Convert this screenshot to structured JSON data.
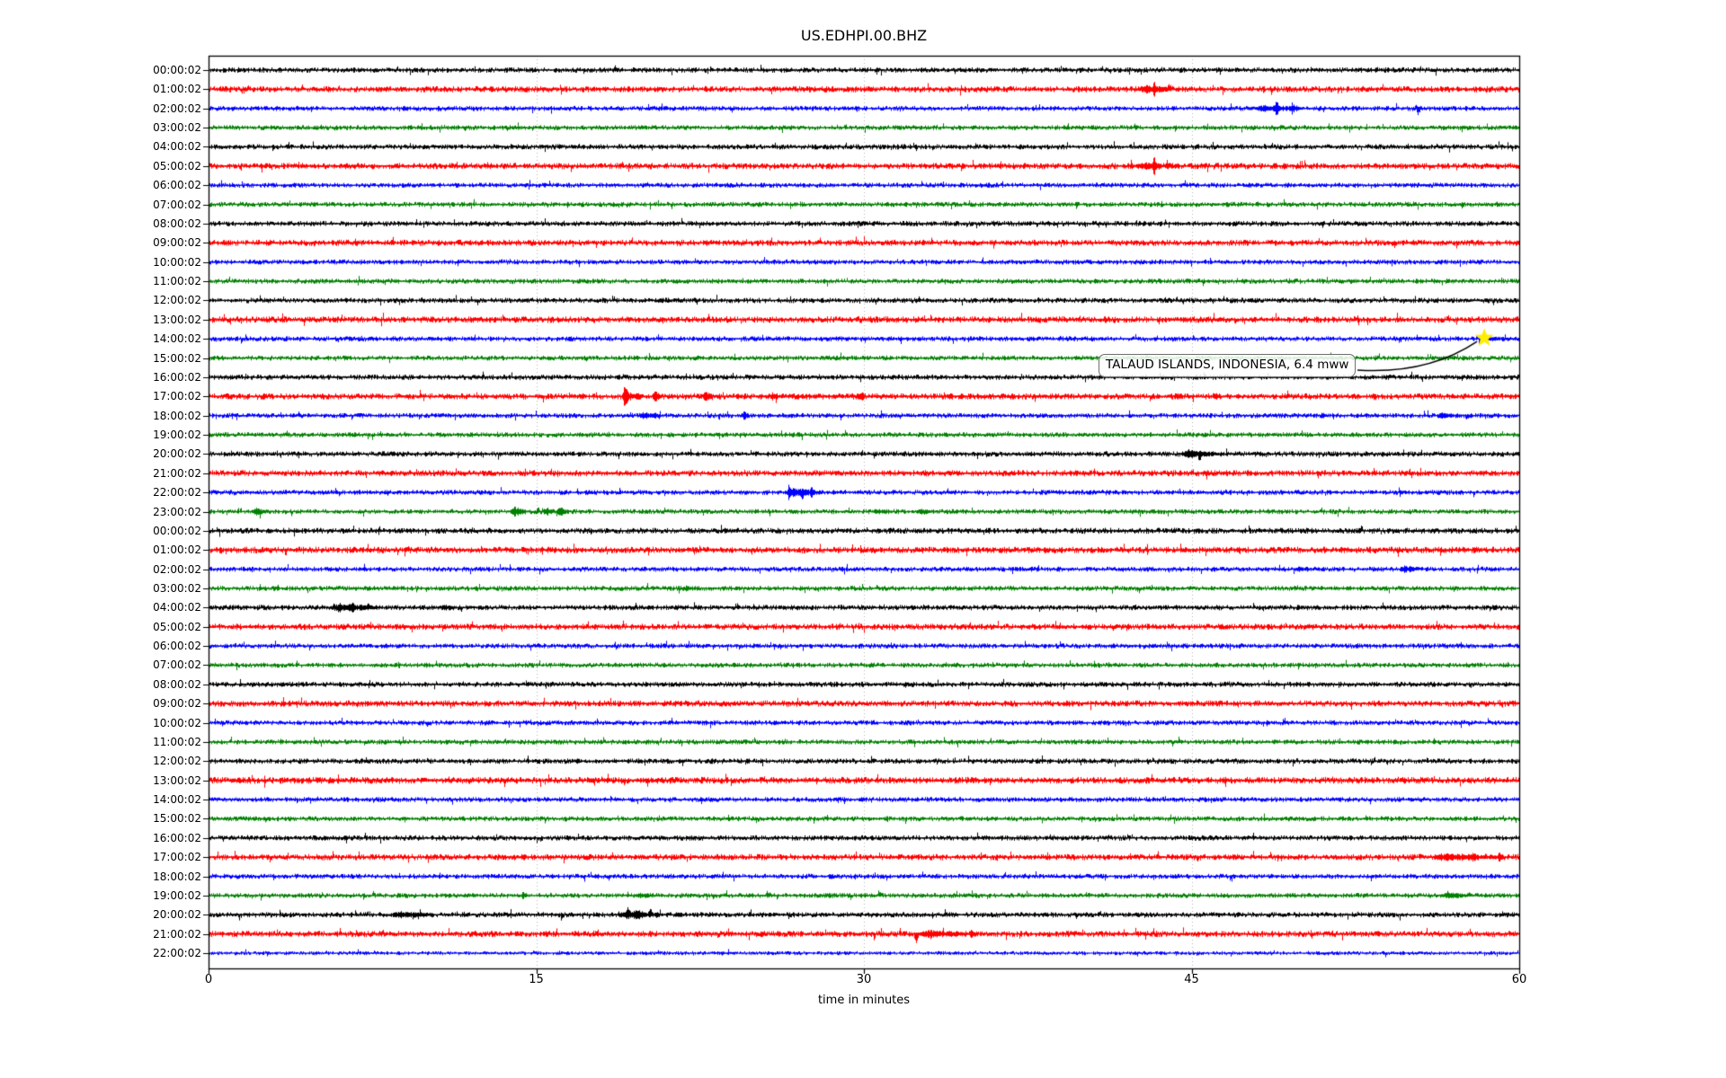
{
  "chart_data": {
    "type": "line",
    "subtype": "helicorder-seismogram",
    "title": "US.EDHPI.00.BHZ",
    "xlabel": "time in minutes",
    "xlim": [
      0,
      60
    ],
    "x_ticks": [
      0,
      15,
      30,
      45,
      60
    ],
    "grid": {
      "vertical_at_minutes": [
        15,
        30,
        45
      ],
      "style": "dotted",
      "color": "#b5b5b5"
    },
    "trace_colors_cycle": [
      "#000000",
      "#ff0000",
      "#0000ff",
      "#008000"
    ],
    "events_format": [
      "start_minute",
      "duration_minutes",
      "amplitude_px",
      "direction(-1 down,0 both,1 up)"
    ],
    "rows": [
      {
        "label": "00:00:02",
        "color": "#000000",
        "noise": 1.9,
        "events": [
          [
            18.55,
            0.15,
            6,
            1
          ]
        ]
      },
      {
        "label": "01:00:02",
        "color": "#ff0000",
        "noise": 2.2,
        "events": [
          [
            42.5,
            2.2,
            4,
            0
          ],
          [
            43.2,
            0.25,
            9,
            0
          ],
          [
            43.9,
            0.3,
            6,
            1
          ]
        ]
      },
      {
        "label": "02:00:02",
        "color": "#0000ff",
        "noise": 1.8,
        "events": [
          [
            47.9,
            2.2,
            4,
            0
          ],
          [
            48.8,
            0.2,
            11,
            0
          ],
          [
            49.5,
            0.4,
            6,
            0
          ],
          [
            55.2,
            0.2,
            5,
            1
          ],
          [
            55.3,
            0.15,
            12,
            -1
          ]
        ]
      },
      {
        "label": "03:00:02",
        "color": "#008000",
        "noise": 1.8,
        "events": []
      },
      {
        "label": "04:00:02",
        "color": "#000000",
        "noise": 1.9,
        "events": []
      },
      {
        "label": "05:00:02",
        "color": "#ff0000",
        "noise": 2.2,
        "events": [
          [
            42.4,
            2.0,
            4,
            0
          ],
          [
            43.2,
            0.2,
            13,
            0
          ],
          [
            43.8,
            0.3,
            6,
            1
          ]
        ]
      },
      {
        "label": "06:00:02",
        "color": "#0000ff",
        "noise": 1.8,
        "events": []
      },
      {
        "label": "07:00:02",
        "color": "#008000",
        "noise": 1.8,
        "events": []
      },
      {
        "label": "08:00:02",
        "color": "#000000",
        "noise": 1.9,
        "events": []
      },
      {
        "label": "09:00:02",
        "color": "#ff0000",
        "noise": 2.2,
        "events": [
          [
            9.2,
            0.6,
            2.5,
            0
          ]
        ]
      },
      {
        "label": "10:00:02",
        "color": "#0000ff",
        "noise": 1.8,
        "events": []
      },
      {
        "label": "11:00:02",
        "color": "#008000",
        "noise": 1.8,
        "events": []
      },
      {
        "label": "12:00:02",
        "color": "#000000",
        "noise": 1.9,
        "events": []
      },
      {
        "label": "13:00:02",
        "color": "#ff0000",
        "noise": 2.3,
        "events": []
      },
      {
        "label": "14:00:02",
        "color": "#0000ff",
        "noise": 1.8,
        "events": [
          [
            58.4,
            0.3,
            3.5,
            0
          ],
          [
            58.4,
            1.6,
            2,
            0
          ]
        ]
      },
      {
        "label": "15:00:02",
        "color": "#008000",
        "noise": 1.8,
        "events": []
      },
      {
        "label": "16:00:02",
        "color": "#000000",
        "noise": 1.9,
        "events": []
      },
      {
        "label": "17:00:02",
        "color": "#ff0000",
        "noise": 2.2,
        "events": [
          [
            18.9,
            0.5,
            9,
            0
          ],
          [
            19.5,
            0.3,
            6,
            0
          ],
          [
            20.3,
            0.4,
            6,
            0
          ],
          [
            19.0,
            41.0,
            1.2,
            0
          ],
          [
            22.6,
            0.5,
            5,
            0
          ],
          [
            24.1,
            0.3,
            4,
            0
          ],
          [
            25.7,
            0.5,
            4,
            0
          ],
          [
            28.9,
            0.2,
            3.5,
            0
          ],
          [
            29.8,
            0.25,
            6,
            0
          ],
          [
            34.4,
            0.2,
            3.5,
            0
          ],
          [
            44.3,
            0.3,
            4,
            0
          ],
          [
            46.0,
            0.3,
            4.5,
            0
          ],
          [
            47.0,
            0.25,
            3.5,
            0
          ],
          [
            53.3,
            0.2,
            6,
            -1
          ]
        ]
      },
      {
        "label": "18:00:02",
        "color": "#0000ff",
        "noise": 1.8,
        "events": [
          [
            19.7,
            0.9,
            4,
            0
          ],
          [
            20.3,
            0.3,
            4,
            0
          ],
          [
            24.4,
            0.35,
            5,
            0
          ],
          [
            50.9,
            0.3,
            3.5,
            0
          ],
          [
            56.2,
            1.3,
            3,
            0
          ],
          [
            57.5,
            0.4,
            4.5,
            -1
          ]
        ]
      },
      {
        "label": "19:00:02",
        "color": "#008000",
        "noise": 1.8,
        "events": [
          [
            8.9,
            0.3,
            3,
            1
          ]
        ]
      },
      {
        "label": "20:00:02",
        "color": "#000000",
        "noise": 1.9,
        "events": [
          [
            44.5,
            2.0,
            4,
            0
          ],
          [
            44.8,
            0.2,
            5,
            1
          ],
          [
            45.3,
            0.15,
            13,
            -1
          ]
        ]
      },
      {
        "label": "21:00:02",
        "color": "#ff0000",
        "noise": 2.2,
        "events": []
      },
      {
        "label": "22:00:02",
        "color": "#0000ff",
        "noise": 1.8,
        "events": [
          [
            26.4,
            1.6,
            5,
            0
          ],
          [
            26.5,
            0.2,
            8,
            0
          ],
          [
            27.1,
            0.2,
            8,
            -1
          ],
          [
            27.5,
            0.25,
            7,
            0
          ]
        ]
      },
      {
        "label": "23:00:02",
        "color": "#008000",
        "noise": 1.8,
        "events": [
          [
            2.0,
            0.7,
            4,
            0
          ],
          [
            2.3,
            0.15,
            8,
            -1
          ],
          [
            13.8,
            0.8,
            5,
            0
          ],
          [
            15.0,
            0.15,
            7,
            1
          ],
          [
            15.3,
            0.5,
            5,
            0
          ],
          [
            15.9,
            0.6,
            5,
            0
          ],
          [
            30.4,
            0.9,
            3,
            0
          ],
          [
            32.4,
            0.9,
            3,
            0
          ],
          [
            32.7,
            0.15,
            6,
            -1
          ]
        ]
      },
      {
        "label": "00:00:02",
        "color": "#000000",
        "noise": 2.1,
        "events": []
      },
      {
        "label": "01:00:02",
        "color": "#ff0000",
        "noise": 2.3,
        "events": [
          [
            48.4,
            0.2,
            4,
            -1
          ]
        ]
      },
      {
        "label": "02:00:02",
        "color": "#0000ff",
        "noise": 1.8,
        "events": [
          [
            49.8,
            0.6,
            3,
            0
          ],
          [
            54.5,
            1.0,
            4,
            0
          ]
        ]
      },
      {
        "label": "03:00:02",
        "color": "#008000",
        "noise": 1.8,
        "events": [
          [
            21.8,
            0.25,
            3,
            0
          ],
          [
            54.5,
            0.25,
            3,
            1
          ]
        ]
      },
      {
        "label": "04:00:02",
        "color": "#000000",
        "noise": 1.9,
        "events": [
          [
            5.5,
            2.5,
            4.5,
            0
          ],
          [
            5.9,
            0.2,
            7,
            -1
          ],
          [
            6.5,
            0.25,
            6,
            0
          ],
          [
            7.2,
            0.3,
            6,
            1
          ],
          [
            10.6,
            0.7,
            3.5,
            0
          ],
          [
            12.3,
            0.2,
            2.5,
            0
          ]
        ]
      },
      {
        "label": "05:00:02",
        "color": "#ff0000",
        "noise": 2.2,
        "events": []
      },
      {
        "label": "06:00:02",
        "color": "#0000ff",
        "noise": 1.8,
        "events": []
      },
      {
        "label": "07:00:02",
        "color": "#008000",
        "noise": 1.8,
        "events": []
      },
      {
        "label": "08:00:02",
        "color": "#000000",
        "noise": 1.9,
        "events": []
      },
      {
        "label": "09:00:02",
        "color": "#ff0000",
        "noise": 2.2,
        "events": []
      },
      {
        "label": "10:00:02",
        "color": "#0000ff",
        "noise": 1.8,
        "events": []
      },
      {
        "label": "11:00:02",
        "color": "#008000",
        "noise": 1.8,
        "events": []
      },
      {
        "label": "12:00:02",
        "color": "#000000",
        "noise": 1.9,
        "events": []
      },
      {
        "label": "13:00:02",
        "color": "#ff0000",
        "noise": 2.4,
        "events": []
      },
      {
        "label": "14:00:02",
        "color": "#0000ff",
        "noise": 1.8,
        "events": []
      },
      {
        "label": "15:00:02",
        "color": "#008000",
        "noise": 1.8,
        "events": []
      },
      {
        "label": "16:00:02",
        "color": "#000000",
        "noise": 1.9,
        "events": []
      },
      {
        "label": "17:00:02",
        "color": "#ff0000",
        "noise": 2.2,
        "events": [
          [
            56.0,
            3.4,
            4,
            0
          ],
          [
            56.3,
            0.2,
            6,
            0
          ],
          [
            57.8,
            0.25,
            6,
            0
          ],
          [
            59.0,
            0.3,
            5,
            0
          ]
        ]
      },
      {
        "label": "18:00:02",
        "color": "#0000ff",
        "noise": 1.8,
        "events": []
      },
      {
        "label": "19:00:02",
        "color": "#008000",
        "noise": 1.8,
        "events": [
          [
            14.3,
            0.3,
            4.5,
            0
          ],
          [
            19.5,
            1.1,
            3,
            0
          ],
          [
            25.5,
            0.3,
            5,
            1
          ],
          [
            28.3,
            0.3,
            3,
            0
          ],
          [
            30.6,
            0.2,
            6,
            1
          ],
          [
            56.4,
            1.4,
            3.5,
            0
          ],
          [
            57.6,
            0.3,
            4,
            1
          ]
        ]
      },
      {
        "label": "20:00:02",
        "color": "#000000",
        "noise": 1.9,
        "events": [
          [
            8.3,
            2.1,
            3.5,
            0
          ],
          [
            9.3,
            0.2,
            5,
            -1
          ],
          [
            16.1,
            0.15,
            7,
            -1
          ],
          [
            18.8,
            2.0,
            5,
            0
          ],
          [
            19.1,
            0.25,
            8,
            1
          ],
          [
            19.6,
            0.2,
            7,
            0
          ],
          [
            20.1,
            0.25,
            8,
            1
          ],
          [
            21.3,
            0.5,
            3,
            0
          ]
        ]
      },
      {
        "label": "21:00:02",
        "color": "#ff0000",
        "noise": 2.2,
        "events": [
          [
            32.3,
            0.2,
            12,
            -1
          ],
          [
            32.4,
            2.6,
            4,
            0
          ],
          [
            33.4,
            0.3,
            5,
            1
          ],
          [
            34.8,
            0.4,
            4,
            0
          ]
        ]
      },
      {
        "label": "22:00:02",
        "color": "#0000ff",
        "noise": 1.4,
        "events": []
      }
    ],
    "annotation": {
      "text": "TALAUD ISLANDS, INDONESIA, 6.4 mww",
      "row_index": 14,
      "row_label": "14:00:02",
      "event_time_min": 58.4,
      "marker": "star",
      "marker_color": "#ffee00"
    }
  }
}
